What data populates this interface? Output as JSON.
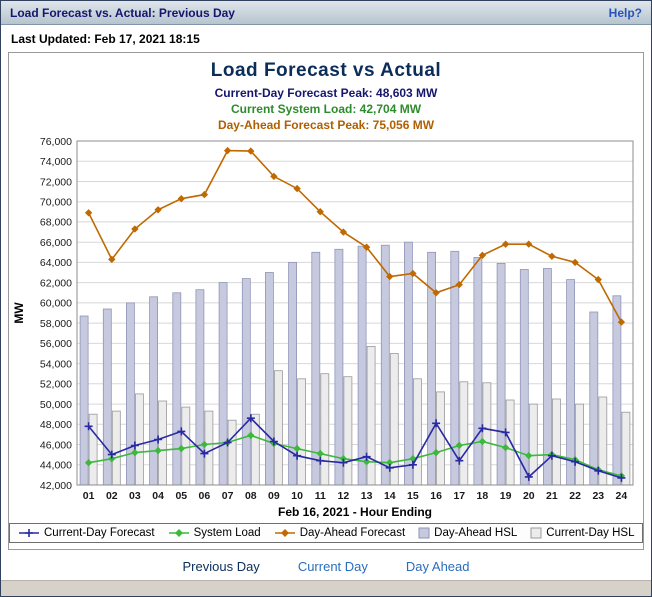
{
  "window": {
    "title": "Load Forecast vs. Actual: Previous Day",
    "help_label": "Help?"
  },
  "status": {
    "last_updated": "Last Updated: Feb 17, 2021 18:15"
  },
  "chart": {
    "title": "Load Forecast vs Actual",
    "subtitles": [
      {
        "text": "Current-Day Forecast Peak:  48,603 MW",
        "color": "#16166e"
      },
      {
        "text": "Current System Load:  42,704 MW",
        "color": "#2e8b2e"
      },
      {
        "text": "Day-Ahead Forecast Peak:  75,056 MW",
        "color": "#b05f00"
      }
    ]
  },
  "chart_data": {
    "type": "bar",
    "title": "Load Forecast vs Actual",
    "xlabel": "Feb 16, 2021 - Hour Ending",
    "ylabel": "MW",
    "ylim": [
      42000,
      76000
    ],
    "ytick_step": 2000,
    "grid": true,
    "legend_position": "bottom",
    "categories": [
      "01",
      "02",
      "03",
      "04",
      "05",
      "06",
      "07",
      "08",
      "09",
      "10",
      "11",
      "12",
      "13",
      "14",
      "15",
      "16",
      "17",
      "18",
      "19",
      "20",
      "21",
      "22",
      "23",
      "24"
    ],
    "series": [
      {
        "name": "Current-Day Forecast",
        "type": "line",
        "marker": "plus",
        "color": "#2929a3",
        "values": [
          47800,
          45000,
          45900,
          46500,
          47300,
          45100,
          46200,
          48603,
          46300,
          44900,
          44400,
          44200,
          44800,
          43700,
          44000,
          48100,
          44400,
          47600,
          47200,
          42800,
          44900,
          44300,
          43400,
          42700
        ]
      },
      {
        "name": "System Load",
        "type": "line",
        "marker": "diamond",
        "color": "#3cb93c",
        "values": [
          44200,
          44600,
          45200,
          45400,
          45600,
          46000,
          46200,
          46900,
          46100,
          45600,
          45100,
          44600,
          44300,
          44200,
          44600,
          45200,
          45900,
          46300,
          45700,
          44900,
          45000,
          44500,
          43500,
          42900
        ]
      },
      {
        "name": "Day-Ahead Forecast",
        "type": "line",
        "marker": "diamond",
        "color": "#bf6900",
        "values": [
          68900,
          64300,
          67300,
          69200,
          70300,
          70700,
          75056,
          75000,
          72500,
          71300,
          69000,
          67000,
          65500,
          62600,
          62900,
          61000,
          61800,
          64700,
          65800,
          65800,
          64600,
          64000,
          62300,
          58100
        ]
      },
      {
        "name": "Day-Ahead HSL",
        "type": "bar",
        "color": "#c7cade",
        "border": "#8f94b8",
        "values": [
          58700,
          59400,
          60000,
          60600,
          61000,
          61300,
          62000,
          62400,
          63000,
          64000,
          65000,
          65300,
          65600,
          65700,
          66000,
          65000,
          65100,
          64500,
          63900,
          63300,
          63400,
          62300,
          59100,
          60700
        ]
      },
      {
        "name": "Current-Day HSL",
        "type": "bar",
        "color": "#ececec",
        "border": "#9a9a9a",
        "values": [
          49000,
          49300,
          51000,
          50300,
          49700,
          49300,
          48400,
          49000,
          53300,
          52500,
          53000,
          52700,
          55700,
          55000,
          52500,
          51200,
          52200,
          52100,
          50400,
          50000,
          50500,
          50000,
          50700,
          49200
        ]
      }
    ]
  },
  "footer_nav": {
    "previous_day": "Previous Day",
    "current_day": "Current Day",
    "day_ahead": "Day Ahead"
  }
}
